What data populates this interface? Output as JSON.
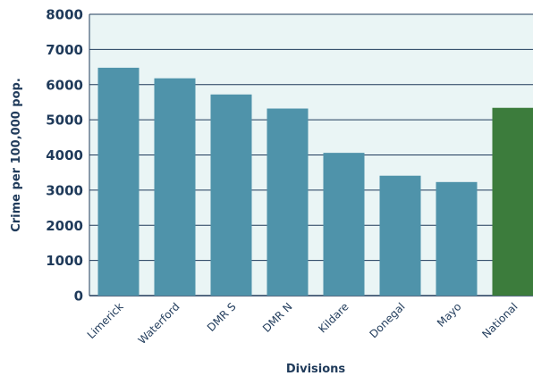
{
  "chart_data": {
    "type": "bar",
    "title": "",
    "xlabel": "Divisions",
    "ylabel": "Crime per 100,000 pop.",
    "ylim": [
      0,
      8000
    ],
    "yticks": [
      0,
      1000,
      2000,
      3000,
      4000,
      5000,
      6000,
      7000,
      8000
    ],
    "grid": true,
    "categories": [
      "Limerick",
      "Waterford",
      "DMR S",
      "DMR N",
      "Kildare",
      "Donegal",
      "Mayo",
      "National"
    ],
    "values": [
      6480,
      6180,
      5720,
      5320,
      4060,
      3410,
      3230,
      5340
    ],
    "colors": {
      "bar": "#4f93aa",
      "highlight_bar": "#3c7c3c",
      "highlight_label": "#2e7d32",
      "plot_background": "#eaf5f5",
      "gridline": "#1f3a5a",
      "text": "#1f3a5a"
    },
    "highlight_category": "National"
  }
}
